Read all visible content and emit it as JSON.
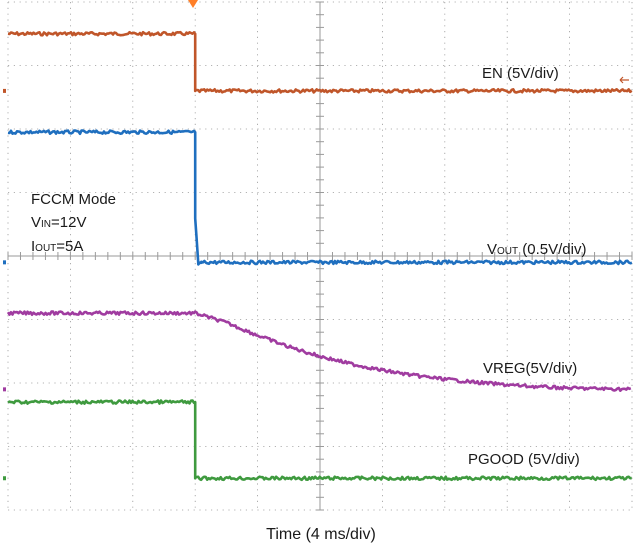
{
  "chart_data": {
    "type": "line",
    "title": "",
    "xlabel": "Time (4 ms/div)",
    "x_divisions": 10,
    "y_divisions": 8,
    "grid": true,
    "trigger_marker_color": "#ff7f27",
    "conditions": {
      "mode": "FCCM Mode",
      "vin": {
        "prefix": "V",
        "sub": "IN",
        "text": "=12V"
      },
      "iout": {
        "prefix": "I",
        "sub": "OUT",
        "text": "=5A"
      }
    },
    "series": [
      {
        "name": "EN (5V/div)",
        "name_parts": {
          "main": "EN (5V/div)"
        },
        "color": "#c0562a",
        "x_div": [
          0,
          3.0,
          3.0,
          10.0
        ],
        "y_div": [
          7.5,
          7.5,
          6.6,
          6.6
        ]
      },
      {
        "name": "VOUT (0.5V/div)",
        "name_parts": {
          "prefix": "V",
          "sub": "OUT",
          "main": " (0.5V/div)"
        },
        "color": "#1f6fbf",
        "x_div": [
          0,
          3.0,
          3.0,
          3.05,
          3.1,
          10.0
        ],
        "y_div": [
          5.95,
          5.95,
          4.6,
          3.85,
          3.9,
          3.9
        ]
      },
      {
        "name": "VREG(5V/div)",
        "name_parts": {
          "main": "VREG(5V/div)"
        },
        "color": "#a03ca0",
        "x_div": [
          0,
          3.0,
          3.5,
          4.0,
          4.5,
          5.0,
          5.5,
          6.0,
          6.5,
          7.0,
          7.5,
          8.0,
          8.5,
          9.0,
          9.5,
          10.0
        ],
        "y_div": [
          3.1,
          3.1,
          2.95,
          2.75,
          2.57,
          2.42,
          2.3,
          2.2,
          2.12,
          2.06,
          2.01,
          1.97,
          1.94,
          1.92,
          1.91,
          1.9
        ]
      },
      {
        "name": "PGOOD (5V/div)",
        "name_parts": {
          "main": "PGOOD (5V/div)"
        },
        "color": "#3f9a3f",
        "x_div": [
          0,
          3.0,
          3.0,
          10.0
        ],
        "y_div": [
          1.7,
          1.7,
          0.5,
          0.5
        ]
      }
    ]
  }
}
